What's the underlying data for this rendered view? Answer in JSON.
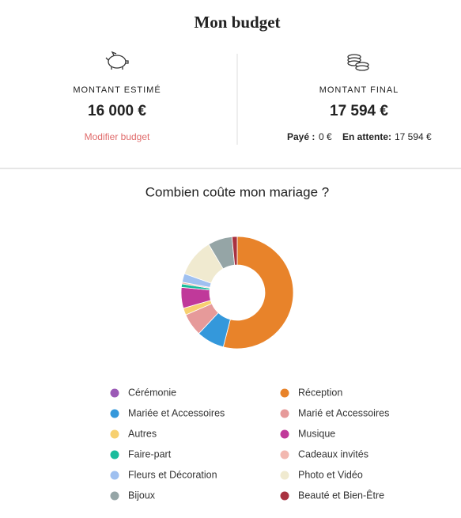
{
  "header": {
    "title": "Mon budget"
  },
  "estimate": {
    "label": "MONTANT ESTIMÉ",
    "amount": "16 000 €",
    "link": "Modifier budget"
  },
  "final": {
    "label": "MONTANT FINAL",
    "amount": "17 594 €",
    "paid_label": "Payé :",
    "paid": "0 €",
    "pending_label": "En attente:",
    "pending": "17 594 €"
  },
  "chart_data": {
    "type": "donut",
    "title": "Combien coûte mon mariage ?",
    "categories": [
      "Cérémonie",
      "Réception",
      "Mariée et Accessoires",
      "Marié et Accessoires",
      "Autres",
      "Musique",
      "Faire-part",
      "Cadeaux invités",
      "Fleurs et Décoration",
      "Photo et Vidéo",
      "Bijoux",
      "Beauté et Bien-Être"
    ],
    "values": [
      0,
      54,
      8,
      6.5,
      2,
      6,
      1,
      0.5,
      2.5,
      11,
      7,
      1.5
    ],
    "colors": [
      "#9b59b6",
      "#e8832a",
      "#3498db",
      "#e69a9a",
      "#f7d070",
      "#c0399a",
      "#1abc9c",
      "#f2b8b0",
      "#9fc0f0",
      "#f0ead0",
      "#95a5a6",
      "#a93240"
    ]
  }
}
